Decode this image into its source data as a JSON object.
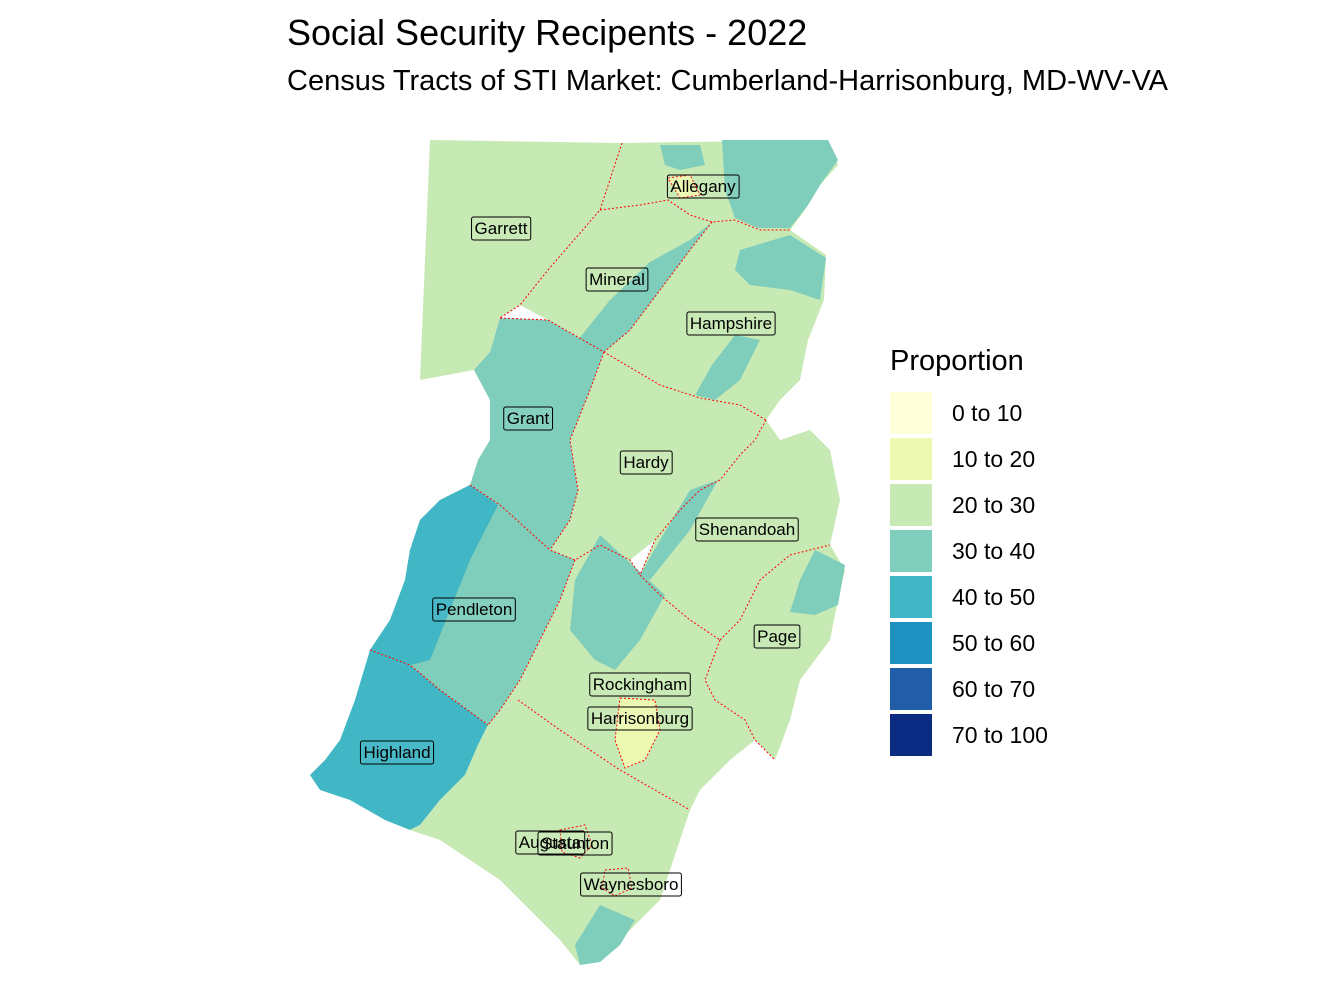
{
  "title": "Social Security Recipents - 2022",
  "subtitle": "Census Tracts of STI Market: Cumberland-Harrisonburg, MD-WV-VA",
  "legend": {
    "title": "Proportion",
    "items": [
      {
        "label": "0 to 10",
        "color": "#ffffd9"
      },
      {
        "label": "10 to 20",
        "color": "#edf8b1"
      },
      {
        "label": "20 to 30",
        "color": "#c7e9b4"
      },
      {
        "label": "30 to 40",
        "color": "#7fcdbb"
      },
      {
        "label": "40 to 50",
        "color": "#41b6c4"
      },
      {
        "label": "50 to 60",
        "color": "#1d91c0"
      },
      {
        "label": "60 to 70",
        "color": "#225ea8"
      },
      {
        "label": "70 to 100",
        "color": "#0c2c84"
      }
    ]
  },
  "counties": [
    {
      "name": "Allegany",
      "proportion_class": "20 to 30"
    },
    {
      "name": "Garrett",
      "proportion_class": "20 to 30"
    },
    {
      "name": "Mineral",
      "proportion_class": "20 to 30"
    },
    {
      "name": "Hampshire",
      "proportion_class": "20 to 30"
    },
    {
      "name": "Grant",
      "proportion_class": "30 to 40"
    },
    {
      "name": "Hardy",
      "proportion_class": "20 to 30"
    },
    {
      "name": "Shenandoah",
      "proportion_class": "20 to 30"
    },
    {
      "name": "Pendleton",
      "proportion_class": "30 to 40"
    },
    {
      "name": "Page",
      "proportion_class": "20 to 30"
    },
    {
      "name": "Rockingham",
      "proportion_class": "20 to 30"
    },
    {
      "name": "Harrisonburg",
      "proportion_class": "10 to 20"
    },
    {
      "name": "Highland",
      "proportion_class": "40 to 50"
    },
    {
      "name": "Augusta",
      "proportion_class": "20 to 30"
    },
    {
      "name": "Staunton",
      "proportion_class": "20 to 30"
    },
    {
      "name": "Waynesboro",
      "proportion_class": "20 to 30"
    }
  ]
}
